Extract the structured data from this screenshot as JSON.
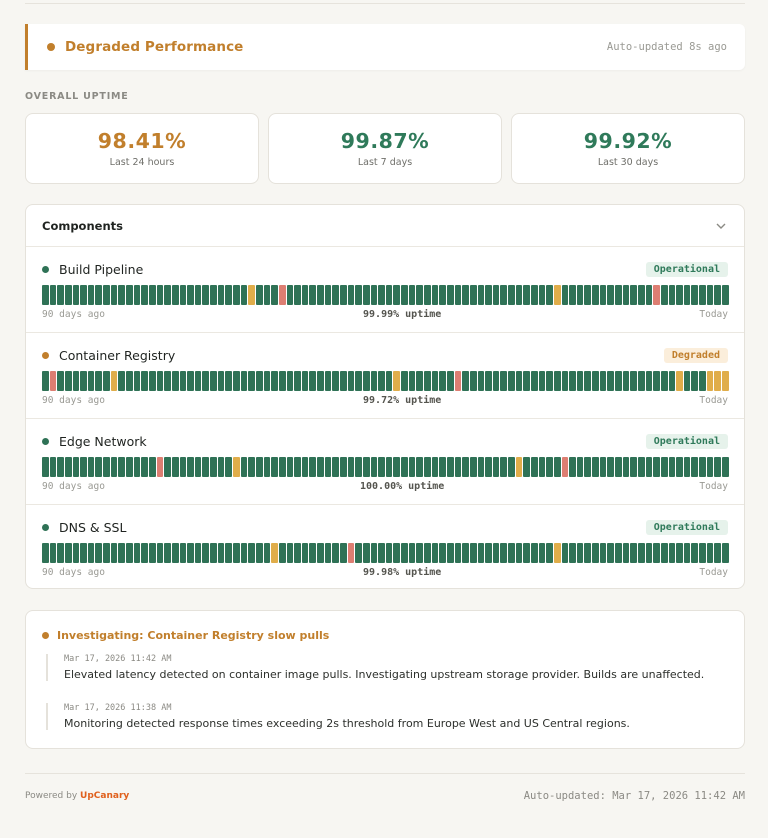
{
  "banner": {
    "title": "Degraded Performance",
    "updated": "Auto-updated 8s ago",
    "color": "#c17f2c"
  },
  "overall": {
    "label": "OVERALL UPTIME",
    "cards": [
      {
        "value": "98.41%",
        "period": "Last 24 hours",
        "color": "#c17f2c"
      },
      {
        "value": "99.87%",
        "period": "Last 7 days",
        "color": "#2f7a5a"
      },
      {
        "value": "99.92%",
        "period": "Last 30 days",
        "color": "#2f7a5a"
      }
    ]
  },
  "components": {
    "title": "Components",
    "colors": {
      "up": "#2f7256",
      "degraded": "#e0ad4a",
      "outage": "#dd7e72"
    },
    "items": [
      {
        "name": "Build Pipeline",
        "status": "Operational",
        "dot_color": "#2f7256",
        "badge_bg": "#e6f2eb",
        "badge_fg": "#2f7a5a",
        "start_label": "90 days ago",
        "uptime_label": "99.99% uptime",
        "end_label": "Today",
        "incidents": [
          {
            "day": 27,
            "type": "degraded"
          },
          {
            "day": 31,
            "type": "outage"
          },
          {
            "day": 67,
            "type": "degraded"
          },
          {
            "day": 80,
            "type": "outage"
          }
        ]
      },
      {
        "name": "Container Registry",
        "status": "Degraded",
        "dot_color": "#c17f2c",
        "badge_bg": "#fbeedb",
        "badge_fg": "#c17f2c",
        "start_label": "90 days ago",
        "uptime_label": "99.72% uptime",
        "end_label": "Today",
        "incidents": [
          {
            "day": 1,
            "type": "outage"
          },
          {
            "day": 9,
            "type": "degraded"
          },
          {
            "day": 46,
            "type": "degraded"
          },
          {
            "day": 54,
            "type": "outage"
          },
          {
            "day": 83,
            "type": "degraded"
          },
          {
            "day": 87,
            "type": "degraded"
          },
          {
            "day": 88,
            "type": "degraded"
          },
          {
            "day": 89,
            "type": "degraded"
          }
        ]
      },
      {
        "name": "Edge Network",
        "status": "Operational",
        "dot_color": "#2f7256",
        "badge_bg": "#e6f2eb",
        "badge_fg": "#2f7a5a",
        "start_label": "90 days ago",
        "uptime_label": "100.00% uptime",
        "end_label": "Today",
        "incidents": [
          {
            "day": 15,
            "type": "outage"
          },
          {
            "day": 25,
            "type": "degraded"
          },
          {
            "day": 62,
            "type": "degraded"
          },
          {
            "day": 68,
            "type": "outage"
          }
        ]
      },
      {
        "name": "DNS & SSL",
        "status": "Operational",
        "dot_color": "#2f7256",
        "badge_bg": "#e6f2eb",
        "badge_fg": "#2f7a5a",
        "start_label": "90 days ago",
        "uptime_label": "99.98% uptime",
        "end_label": "Today",
        "incidents": [
          {
            "day": 30,
            "type": "degraded"
          },
          {
            "day": 40,
            "type": "outage"
          },
          {
            "day": 67,
            "type": "degraded"
          }
        ]
      }
    ]
  },
  "incident": {
    "title": "Investigating: Container Registry slow pulls",
    "updates": [
      {
        "time": "Mar 17, 2026 11:42 AM",
        "text": "Elevated latency detected on container image pulls. Investigating upstream storage provider. Builds are unaffected."
      },
      {
        "time": "Mar 17, 2026 11:38 AM",
        "text": "Monitoring detected response times exceeding 2s threshold from Europe West and US Central regions."
      }
    ]
  },
  "footer": {
    "powered_by": "Powered by",
    "brand": "UpCanary",
    "updated": "Auto-updated: Mar 17, 2026 11:42 AM"
  }
}
